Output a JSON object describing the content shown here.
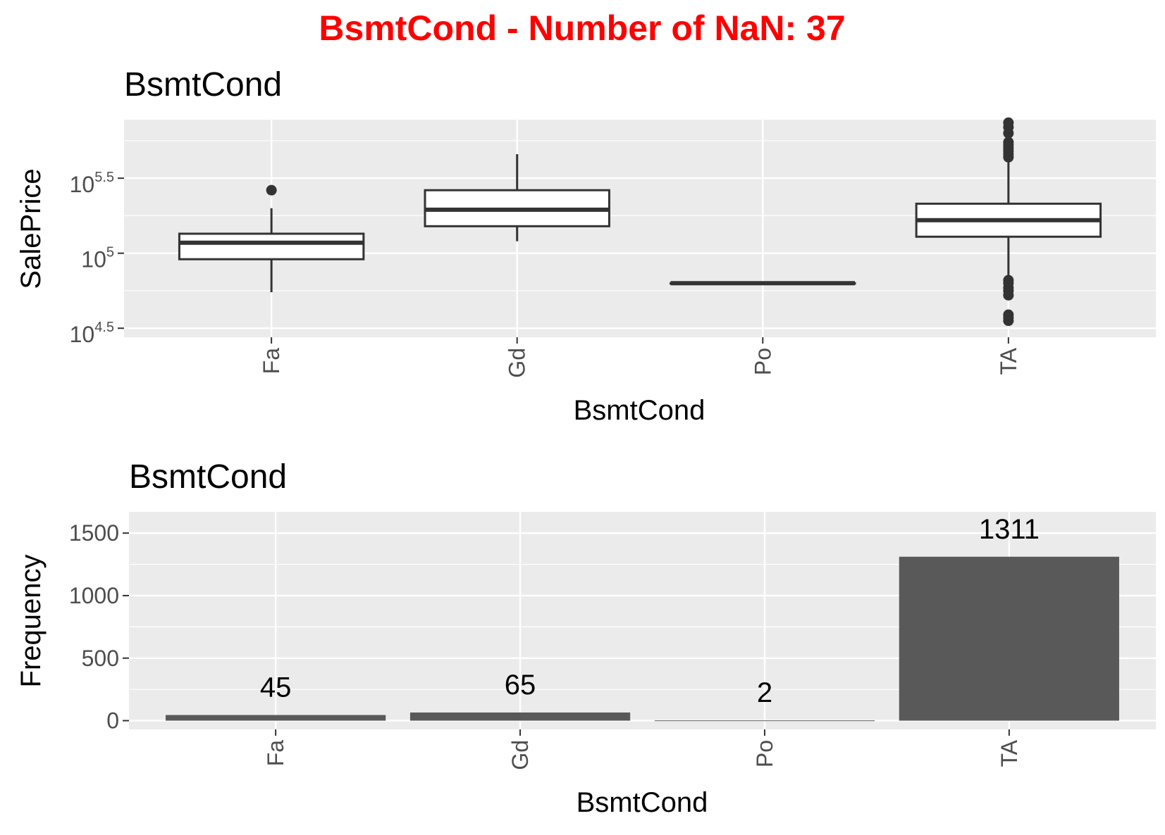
{
  "figure": {
    "title": "BsmtCond - Number of NaN: 37",
    "title_color": "#ff0000"
  },
  "chart_data": [
    {
      "type": "box",
      "title": "BsmtCond",
      "xlabel": "BsmtCond",
      "ylabel": "SalePrice",
      "y_scale": "log10",
      "ylim": [
        4.44,
        5.89
      ],
      "y_ticks": [
        {
          "base": "10",
          "exp": "4.5",
          "value": 4.5
        },
        {
          "base": "10",
          "exp": "5",
          "value": 5.0
        },
        {
          "base": "10",
          "exp": "5.5",
          "value": 5.5
        }
      ],
      "grid": true,
      "panel_color": "#ebebeb",
      "box_fill": "#ffffff",
      "box_stroke": "#333333",
      "categories": [
        "Fa",
        "Gd",
        "Po",
        "TA"
      ],
      "boxes": [
        {
          "category": "Fa",
          "whisker_low": 4.74,
          "q1": 4.96,
          "median": 5.07,
          "q3": 5.13,
          "whisker_high": 5.3,
          "outliers": [
            5.42
          ]
        },
        {
          "category": "Gd",
          "whisker_low": 5.08,
          "q1": 5.18,
          "median": 5.29,
          "q3": 5.42,
          "whisker_high": 5.66,
          "outliers": []
        },
        {
          "category": "Po",
          "whisker_low": 4.8,
          "q1": 4.8,
          "median": 4.8,
          "q3": 4.8,
          "whisker_high": 4.8,
          "outliers": []
        },
        {
          "category": "TA",
          "whisker_low": 4.84,
          "q1": 5.11,
          "median": 5.22,
          "q3": 5.33,
          "whisker_high": 5.63,
          "outliers": [
            4.55,
            4.57,
            4.59,
            4.72,
            4.75,
            4.77,
            4.8,
            4.82,
            5.64,
            5.66,
            5.68,
            5.7,
            5.72,
            5.74,
            5.8,
            5.84,
            5.87
          ]
        }
      ]
    },
    {
      "type": "bar",
      "title": "BsmtCond",
      "xlabel": "BsmtCond",
      "ylabel": "Frequency",
      "ylim": [
        -70,
        1670
      ],
      "y_ticks": [
        0,
        500,
        1000,
        1500
      ],
      "grid": true,
      "panel_color": "#ebebeb",
      "bar_color": "#595959",
      "categories": [
        "Fa",
        "Gd",
        "Po",
        "TA"
      ],
      "values": [
        45,
        65,
        2,
        1311
      ],
      "labels": [
        "45",
        "65",
        "2",
        "1311"
      ]
    }
  ]
}
